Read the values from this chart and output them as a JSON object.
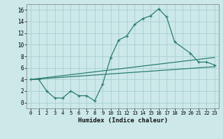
{
  "line1_x": [
    0,
    1,
    2,
    3,
    4,
    5,
    6,
    7,
    8,
    9,
    10,
    11,
    12,
    13,
    14,
    15,
    16,
    17,
    18,
    20,
    21,
    22,
    23
  ],
  "line1_y": [
    4.0,
    4.0,
    2.0,
    0.8,
    0.8,
    2.0,
    1.2,
    1.2,
    0.3,
    3.2,
    7.8,
    10.8,
    11.5,
    13.5,
    14.5,
    15.0,
    16.2,
    14.8,
    10.5,
    8.5,
    7.0,
    7.0,
    6.5
  ],
  "line2_x": [
    0,
    23
  ],
  "line2_y": [
    4.0,
    7.8
  ],
  "line3_x": [
    0,
    23
  ],
  "line3_y": [
    4.0,
    6.2
  ],
  "line_color": "#2a7d6e",
  "bg_color": "#cce8e8",
  "grid_color": "#aacfcf",
  "xlabel": "Humidex (Indice chaleur)",
  "xlim": [
    -0.5,
    23.5
  ],
  "ylim": [
    -1.0,
    17.0
  ],
  "xticks": [
    0,
    1,
    2,
    3,
    4,
    5,
    6,
    7,
    8,
    9,
    10,
    11,
    12,
    13,
    14,
    15,
    16,
    17,
    18,
    19,
    20,
    21,
    22,
    23
  ],
  "yticks": [
    0,
    2,
    4,
    6,
    8,
    10,
    12,
    14,
    16
  ]
}
